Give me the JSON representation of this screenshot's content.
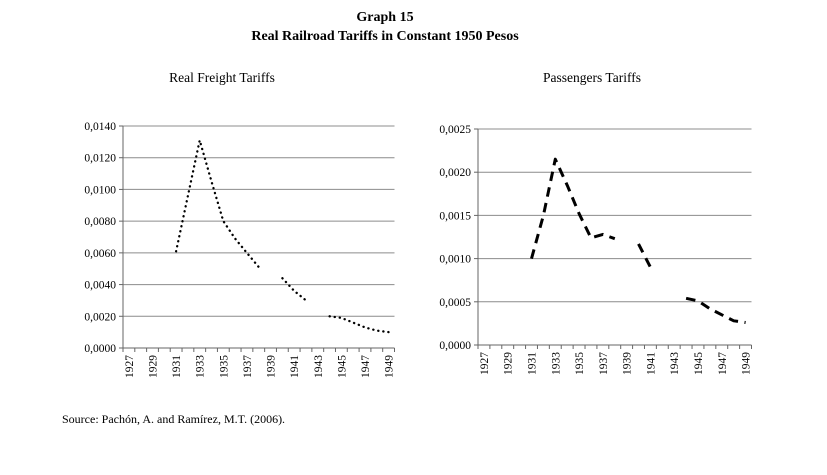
{
  "page": {
    "title": "Graph 15",
    "subtitle": "Real Railroad Tariffs in Constant 1950 Pesos",
    "source_note": "Source: Pachón, A. and Ramírez, M.T. (2006).",
    "background_color": "#ffffff",
    "text_color": "#000000"
  },
  "chart_data": [
    {
      "type": "line",
      "title": "Real Freight Tariffs",
      "line_style": "dotted",
      "line_color": "#000000",
      "grid": true,
      "grid_color": "#8c8c8c",
      "axis_color": "#666666",
      "legend": "none",
      "x_axis": {
        "start": 1927,
        "end": 1949,
        "tick_interval": 1,
        "label_interval": 2,
        "label_rotation": -90
      },
      "xtick_labels": [
        "1927",
        "1929",
        "1931",
        "1933",
        "1935",
        "1937",
        "1939",
        "1941",
        "1943",
        "1945",
        "1947",
        "1949"
      ],
      "ylim": [
        0,
        0.014
      ],
      "ytick_step": 0.002,
      "ytick_labels": [
        "0,0000",
        "0,0020",
        "0,0040",
        "0,0060",
        "0,0080",
        "0,0100",
        "0,0120",
        "0,0140"
      ],
      "x": [
        1931,
        1932,
        1933,
        1934,
        1935,
        1936,
        1937,
        1938,
        1939,
        1940,
        1941,
        1942,
        1943,
        1944,
        1945,
        1946,
        1947,
        1948,
        1949
      ],
      "values": [
        0.0061,
        0.0096,
        0.0131,
        0.0105,
        0.008,
        0.0069,
        0.006,
        0.0051,
        null,
        0.0044,
        0.0036,
        0.003,
        null,
        0.002,
        0.0019,
        0.0016,
        0.0013,
        0.0011,
        0.001
      ]
    },
    {
      "type": "line",
      "title": "Passengers Tariffs",
      "line_style": "dashed",
      "line_color": "#000000",
      "grid": true,
      "grid_color": "#8c8c8c",
      "axis_color": "#666666",
      "legend": "none",
      "x_axis": {
        "start": 1927,
        "end": 1949,
        "tick_interval": 1,
        "label_interval": 2,
        "label_rotation": -90
      },
      "xtick_labels": [
        "1927",
        "1929",
        "1931",
        "1933",
        "1935",
        "1937",
        "1939",
        "1941",
        "1943",
        "1945",
        "1947",
        "1949"
      ],
      "ylim": [
        0,
        0.0025
      ],
      "ytick_step": 0.0005,
      "ytick_labels": [
        "0,0000",
        "0,0005",
        "0,0010",
        "0,0015",
        "0,0020",
        "0,0025"
      ],
      "x": [
        1931,
        1932,
        1933,
        1934,
        1935,
        1936,
        1937,
        1938,
        1939,
        1940,
        1941,
        1942,
        1943,
        1944,
        1945,
        1946,
        1947,
        1948,
        1949
      ],
      "values": [
        0.001,
        0.0015,
        0.00215,
        0.00185,
        0.00152,
        0.00124,
        0.00128,
        0.00123,
        null,
        0.00117,
        0.0009,
        null,
        null,
        0.00054,
        0.00051,
        0.00042,
        0.00035,
        0.00028,
        0.00026
      ]
    }
  ]
}
